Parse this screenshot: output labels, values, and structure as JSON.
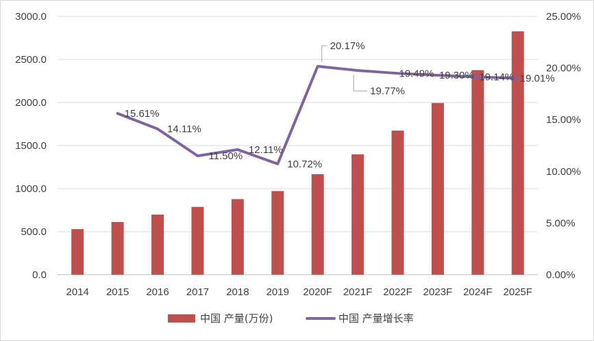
{
  "chart_data": {
    "type": "bar",
    "categories": [
      "2014",
      "2015",
      "2016",
      "2017",
      "2018",
      "2019",
      "2020F",
      "2021F",
      "2022F",
      "2023F",
      "2024F",
      "2025F"
    ],
    "series": [
      {
        "name": "中国 产量(万份)",
        "type": "bar",
        "axis": "left",
        "color": "#c0504d",
        "values": [
          530,
          612,
          698,
          788,
          878,
          972,
          1168,
          1398,
          1674,
          1994,
          2376,
          2827
        ]
      },
      {
        "name": "中国 产量增长率",
        "type": "line",
        "axis": "right",
        "color": "#8064a2",
        "values": [
          null,
          15.61,
          14.11,
          11.5,
          12.11,
          10.72,
          20.17,
          19.77,
          19.49,
          19.3,
          19.14,
          19.01
        ],
        "labels": [
          "",
          "15.61%",
          "14.11%",
          "11.50%",
          "12.11%",
          "10.72%",
          "20.17%",
          "19.77%",
          "19.49%",
          "19.30%",
          "19.14%",
          "19.01%"
        ]
      }
    ],
    "y_left": {
      "min": 0,
      "max": 3000,
      "step": 500,
      "tick_labels": [
        "0.0",
        "500.0",
        "1000.0",
        "1500.0",
        "2000.0",
        "2500.0",
        "3000.0"
      ]
    },
    "y_right": {
      "min": 0,
      "max": 25,
      "step": 5,
      "tick_labels": [
        "0.00%",
        "5.00%",
        "10.00%",
        "15.00%",
        "20.00%",
        "25.00%"
      ]
    },
    "grid": true,
    "legend_position": "bottom"
  }
}
